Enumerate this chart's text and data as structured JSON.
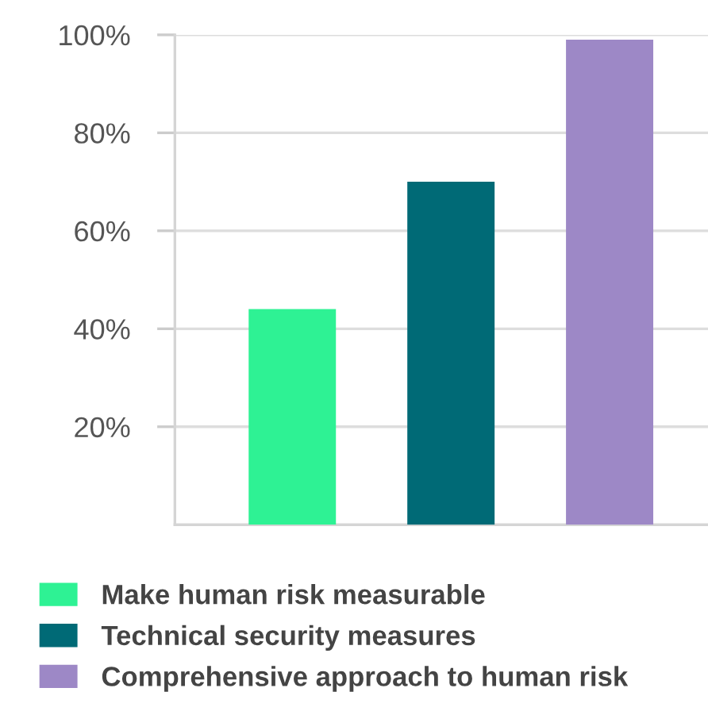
{
  "chart_data": {
    "type": "bar",
    "categories": [
      null,
      null,
      null
    ],
    "series": [
      {
        "name": "Make human risk measurable",
        "color": "#2ef294",
        "values": [
          44,
          null,
          null
        ]
      },
      {
        "name": "Technical security measures",
        "color": "#006a76",
        "values": [
          null,
          70,
          null
        ]
      },
      {
        "name": "Comprehensive approach to human risk",
        "color": "#9d88c6",
        "values": [
          null,
          null,
          99
        ]
      }
    ],
    "ylim": [
      0,
      100
    ],
    "yticks": [
      {
        "value": 20,
        "label": "20%"
      },
      {
        "value": 40,
        "label": "40%"
      },
      {
        "value": 60,
        "label": "60%"
      },
      {
        "value": 80,
        "label": "80%"
      },
      {
        "value": 100,
        "label": "100%"
      }
    ],
    "grid": "y",
    "legend": "bottom"
  }
}
